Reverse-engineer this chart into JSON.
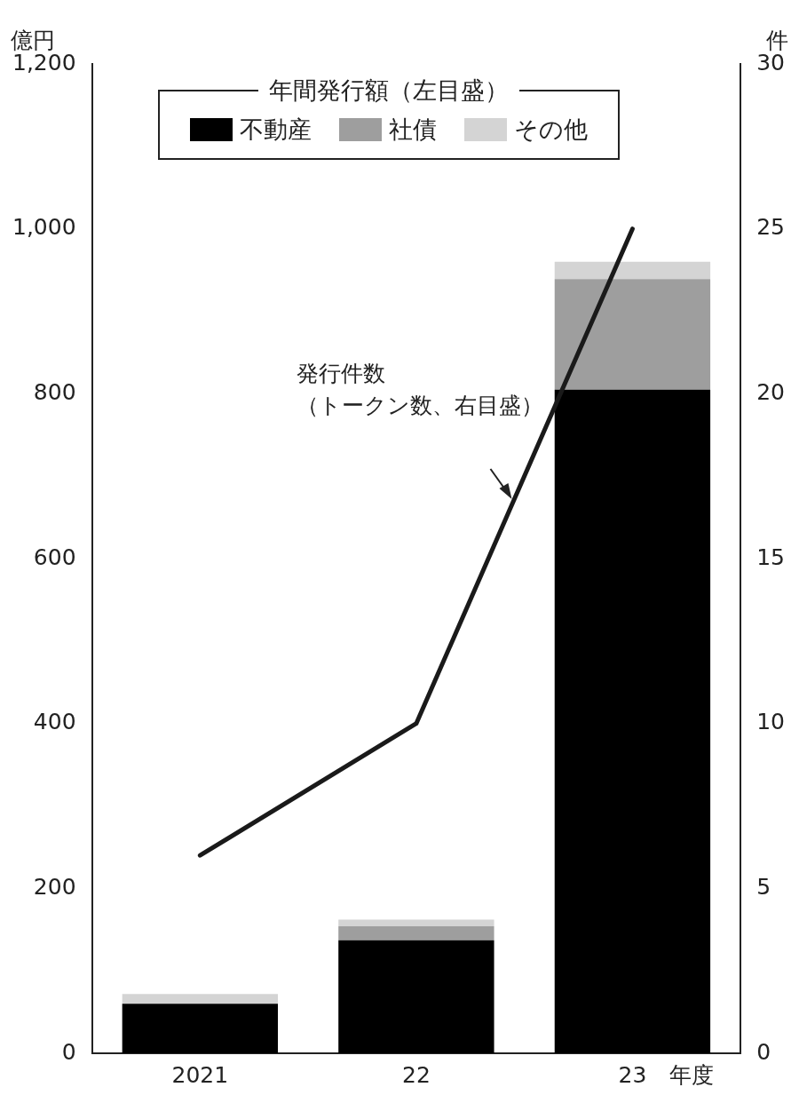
{
  "chart_data": {
    "type": "bar",
    "stacked": true,
    "categories": [
      "2021",
      "22",
      "23"
    ],
    "xlabel": "年度",
    "ylabel": "億円",
    "y2label": "件",
    "legend_title": "年間発行額（左目盛）",
    "legend": "top",
    "series": [
      {
        "name": "不動産",
        "color": "#000000",
        "values": [
          60,
          137,
          805
        ]
      },
      {
        "name": "社債",
        "color": "#9e9e9e",
        "values": [
          0,
          17,
          134
        ]
      },
      {
        "name": "その他",
        "color": "#d4d4d4",
        "values": [
          12,
          8,
          21
        ]
      },
      {
        "name": "発行件数（トークン数、右目盛）",
        "type": "line",
        "axis": "y2",
        "color": "#1a1a1a",
        "values": [
          6,
          10,
          25
        ]
      }
    ],
    "ylim": [
      0,
      1200
    ],
    "yticks": [
      0,
      {
        "value": 200,
        "label": "200"
      },
      {
        "value": 400,
        "label": "400"
      },
      {
        "value": 600,
        "label": "600"
      },
      {
        "value": 800,
        "label": "800"
      },
      {
        "value": 1000,
        "label": "1,000"
      },
      {
        "value": 1200,
        "label": "1,200"
      }
    ],
    "y2lim": [
      0,
      30
    ],
    "y2ticks": [
      0,
      5,
      10,
      15,
      20,
      25,
      30
    ],
    "grid": false
  }
}
